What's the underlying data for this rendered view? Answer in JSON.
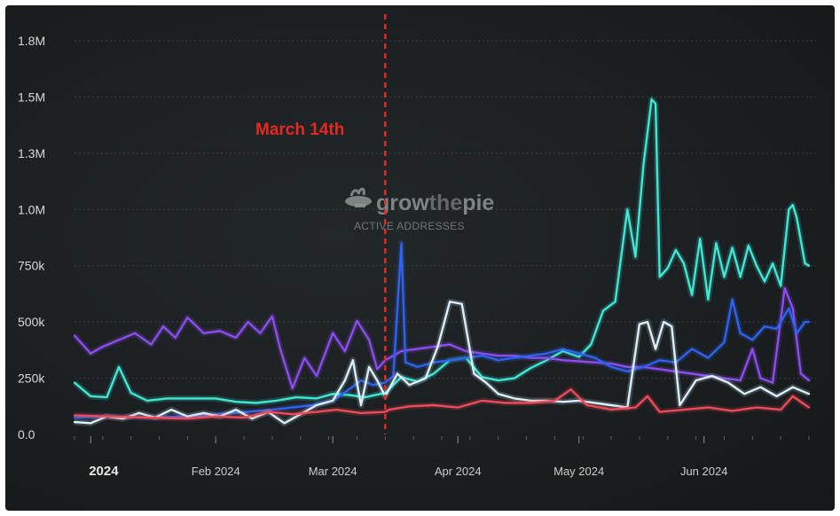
{
  "chart_data": {
    "type": "line",
    "title": "",
    "xlabel": "",
    "ylabel": "",
    "ylim": [
      0,
      1750000
    ],
    "y_ticks": [
      {
        "value": 0,
        "label": "0.0"
      },
      {
        "value": 250000,
        "label": "250k"
      },
      {
        "value": 500000,
        "label": "500k"
      },
      {
        "value": 750000,
        "label": "750k"
      },
      {
        "value": 1000000,
        "label": "1.0M"
      },
      {
        "value": 1250000,
        "label": "1.3M"
      },
      {
        "value": 1500000,
        "label": "1.5M"
      },
      {
        "value": 1750000,
        "label": "1.8M"
      }
    ],
    "x_range": [
      "2023-12-28",
      "2024-06-27"
    ],
    "x_ticks": [
      {
        "date": "2024-01-01",
        "label": "2024",
        "bold": true
      },
      {
        "date": "2024-02-01",
        "label": "Feb 2024",
        "bold": false
      },
      {
        "date": "2024-03-01",
        "label": "Mar 2024",
        "bold": false
      },
      {
        "date": "2024-04-01",
        "label": "Apr 2024",
        "bold": false
      },
      {
        "date": "2024-05-01",
        "label": "May 2024",
        "bold": false
      },
      {
        "date": "2024-06-01",
        "label": "Jun 2024",
        "bold": false
      }
    ],
    "grid": true,
    "annotation": {
      "date": "2024-03-14",
      "label": "March 14th",
      "color": "#e8281f"
    },
    "watermark": {
      "brand_strong": "grow",
      "brand_light": "the",
      "brand_end": "pie",
      "subtitle": "ACTIVE ADDRESSES"
    },
    "series": [
      {
        "name": "teal",
        "color": "#3ee8d6",
        "points": [
          [
            "2023-12-28",
            230000
          ],
          [
            "2024-01-01",
            170000
          ],
          [
            "2024-01-05",
            165000
          ],
          [
            "2024-01-08",
            300000
          ],
          [
            "2024-01-11",
            185000
          ],
          [
            "2024-01-15",
            150000
          ],
          [
            "2024-01-20",
            160000
          ],
          [
            "2024-01-25",
            160000
          ],
          [
            "2024-02-01",
            160000
          ],
          [
            "2024-02-06",
            145000
          ],
          [
            "2024-02-11",
            140000
          ],
          [
            "2024-02-16",
            150000
          ],
          [
            "2024-02-21",
            165000
          ],
          [
            "2024-02-26",
            160000
          ],
          [
            "2024-03-01",
            180000
          ],
          [
            "2024-03-05",
            175000
          ],
          [
            "2024-03-09",
            165000
          ],
          [
            "2024-03-14",
            185000
          ],
          [
            "2024-03-18",
            255000
          ],
          [
            "2024-03-22",
            235000
          ],
          [
            "2024-03-26",
            270000
          ],
          [
            "2024-03-30",
            330000
          ],
          [
            "2024-04-03",
            340000
          ],
          [
            "2024-04-07",
            255000
          ],
          [
            "2024-04-11",
            240000
          ],
          [
            "2024-04-15",
            250000
          ],
          [
            "2024-04-19",
            295000
          ],
          [
            "2024-04-23",
            330000
          ],
          [
            "2024-04-27",
            370000
          ],
          [
            "2024-05-01",
            345000
          ],
          [
            "2024-05-04",
            400000
          ],
          [
            "2024-05-07",
            550000
          ],
          [
            "2024-05-10",
            590000
          ],
          [
            "2024-05-13",
            1000000
          ],
          [
            "2024-05-15",
            790000
          ],
          [
            "2024-05-17",
            1200000
          ],
          [
            "2024-05-19",
            1490000
          ],
          [
            "2024-05-20",
            1470000
          ],
          [
            "2024-05-21",
            700000
          ],
          [
            "2024-05-23",
            740000
          ],
          [
            "2024-05-25",
            820000
          ],
          [
            "2024-05-27",
            760000
          ],
          [
            "2024-05-29",
            620000
          ],
          [
            "2024-05-31",
            870000
          ],
          [
            "2024-06-02",
            600000
          ],
          [
            "2024-06-04",
            850000
          ],
          [
            "2024-06-06",
            700000
          ],
          [
            "2024-06-08",
            830000
          ],
          [
            "2024-06-10",
            700000
          ],
          [
            "2024-06-12",
            840000
          ],
          [
            "2024-06-14",
            750000
          ],
          [
            "2024-06-16",
            680000
          ],
          [
            "2024-06-18",
            760000
          ],
          [
            "2024-06-20",
            660000
          ],
          [
            "2024-06-22",
            1000000
          ],
          [
            "2024-06-23",
            1020000
          ],
          [
            "2024-06-24",
            960000
          ],
          [
            "2024-06-26",
            760000
          ],
          [
            "2024-06-27",
            750000
          ]
        ]
      },
      {
        "name": "purple",
        "color": "#8c4cf0",
        "points": [
          [
            "2023-12-28",
            440000
          ],
          [
            "2024-01-01",
            360000
          ],
          [
            "2024-01-04",
            390000
          ],
          [
            "2024-01-08",
            420000
          ],
          [
            "2024-01-12",
            450000
          ],
          [
            "2024-01-16",
            400000
          ],
          [
            "2024-01-19",
            480000
          ],
          [
            "2024-01-22",
            430000
          ],
          [
            "2024-01-25",
            520000
          ],
          [
            "2024-01-29",
            450000
          ],
          [
            "2024-02-02",
            460000
          ],
          [
            "2024-02-06",
            430000
          ],
          [
            "2024-02-09",
            500000
          ],
          [
            "2024-02-12",
            450000
          ],
          [
            "2024-02-15",
            525000
          ],
          [
            "2024-02-17",
            380000
          ],
          [
            "2024-02-20",
            205000
          ],
          [
            "2024-02-23",
            340000
          ],
          [
            "2024-02-26",
            260000
          ],
          [
            "2024-03-01",
            450000
          ],
          [
            "2024-03-04",
            370000
          ],
          [
            "2024-03-07",
            505000
          ],
          [
            "2024-03-10",
            420000
          ],
          [
            "2024-03-12",
            290000
          ],
          [
            "2024-03-14",
            330000
          ],
          [
            "2024-03-18",
            370000
          ],
          [
            "2024-03-22",
            380000
          ],
          [
            "2024-03-26",
            390000
          ],
          [
            "2024-03-30",
            400000
          ],
          [
            "2024-04-03",
            370000
          ],
          [
            "2024-04-07",
            360000
          ],
          [
            "2024-04-11",
            350000
          ],
          [
            "2024-04-15",
            350000
          ],
          [
            "2024-04-19",
            340000
          ],
          [
            "2024-04-23",
            340000
          ],
          [
            "2024-04-27",
            330000
          ],
          [
            "2024-05-01",
            325000
          ],
          [
            "2024-05-05",
            320000
          ],
          [
            "2024-05-09",
            315000
          ],
          [
            "2024-05-13",
            300000
          ],
          [
            "2024-05-17",
            300000
          ],
          [
            "2024-05-21",
            290000
          ],
          [
            "2024-05-25",
            280000
          ],
          [
            "2024-05-29",
            270000
          ],
          [
            "2024-06-02",
            260000
          ],
          [
            "2024-06-06",
            250000
          ],
          [
            "2024-06-10",
            240000
          ],
          [
            "2024-06-13",
            380000
          ],
          [
            "2024-06-15",
            250000
          ],
          [
            "2024-06-18",
            230000
          ],
          [
            "2024-06-21",
            650000
          ],
          [
            "2024-06-23",
            560000
          ],
          [
            "2024-06-25",
            270000
          ],
          [
            "2024-06-27",
            240000
          ]
        ]
      },
      {
        "name": "blue",
        "color": "#2e62f0",
        "points": [
          [
            "2023-12-28",
            75000
          ],
          [
            "2024-01-05",
            80000
          ],
          [
            "2024-01-15",
            75000
          ],
          [
            "2024-01-25",
            80000
          ],
          [
            "2024-02-05",
            95000
          ],
          [
            "2024-02-15",
            110000
          ],
          [
            "2024-02-25",
            130000
          ],
          [
            "2024-03-01",
            150000
          ],
          [
            "2024-03-05",
            200000
          ],
          [
            "2024-03-08",
            240000
          ],
          [
            "2024-03-11",
            220000
          ],
          [
            "2024-03-14",
            230000
          ],
          [
            "2024-03-16",
            260000
          ],
          [
            "2024-03-18",
            850000
          ],
          [
            "2024-03-19",
            320000
          ],
          [
            "2024-03-22",
            300000
          ],
          [
            "2024-03-26",
            320000
          ],
          [
            "2024-03-30",
            330000
          ],
          [
            "2024-04-03",
            340000
          ],
          [
            "2024-04-07",
            350000
          ],
          [
            "2024-04-11",
            330000
          ],
          [
            "2024-04-15",
            340000
          ],
          [
            "2024-04-19",
            350000
          ],
          [
            "2024-04-23",
            360000
          ],
          [
            "2024-04-27",
            380000
          ],
          [
            "2024-05-01",
            360000
          ],
          [
            "2024-05-05",
            340000
          ],
          [
            "2024-05-09",
            300000
          ],
          [
            "2024-05-13",
            280000
          ],
          [
            "2024-05-17",
            300000
          ],
          [
            "2024-05-21",
            330000
          ],
          [
            "2024-05-25",
            320000
          ],
          [
            "2024-05-29",
            380000
          ],
          [
            "2024-06-02",
            340000
          ],
          [
            "2024-06-06",
            410000
          ],
          [
            "2024-06-08",
            600000
          ],
          [
            "2024-06-10",
            450000
          ],
          [
            "2024-06-13",
            420000
          ],
          [
            "2024-06-16",
            480000
          ],
          [
            "2024-06-19",
            470000
          ],
          [
            "2024-06-22",
            560000
          ],
          [
            "2024-06-24",
            450000
          ],
          [
            "2024-06-26",
            500000
          ],
          [
            "2024-06-27",
            500000
          ]
        ]
      },
      {
        "name": "light-blue",
        "color": "#d8f0fb",
        "points": [
          [
            "2023-12-28",
            55000
          ],
          [
            "2024-01-01",
            50000
          ],
          [
            "2024-01-05",
            80000
          ],
          [
            "2024-01-09",
            70000
          ],
          [
            "2024-01-13",
            95000
          ],
          [
            "2024-01-17",
            75000
          ],
          [
            "2024-01-21",
            110000
          ],
          [
            "2024-01-25",
            80000
          ],
          [
            "2024-01-29",
            95000
          ],
          [
            "2024-02-02",
            80000
          ],
          [
            "2024-02-06",
            110000
          ],
          [
            "2024-02-10",
            70000
          ],
          [
            "2024-02-14",
            100000
          ],
          [
            "2024-02-18",
            50000
          ],
          [
            "2024-02-22",
            90000
          ],
          [
            "2024-02-26",
            130000
          ],
          [
            "2024-03-01",
            150000
          ],
          [
            "2024-03-04",
            240000
          ],
          [
            "2024-03-06",
            330000
          ],
          [
            "2024-03-08",
            130000
          ],
          [
            "2024-03-10",
            300000
          ],
          [
            "2024-03-12",
            240000
          ],
          [
            "2024-03-14",
            170000
          ],
          [
            "2024-03-17",
            270000
          ],
          [
            "2024-03-20",
            220000
          ],
          [
            "2024-03-24",
            250000
          ],
          [
            "2024-03-27",
            390000
          ],
          [
            "2024-03-30",
            590000
          ],
          [
            "2024-04-02",
            580000
          ],
          [
            "2024-04-05",
            270000
          ],
          [
            "2024-04-08",
            230000
          ],
          [
            "2024-04-11",
            180000
          ],
          [
            "2024-04-15",
            160000
          ],
          [
            "2024-04-19",
            150000
          ],
          [
            "2024-04-23",
            150000
          ],
          [
            "2024-04-27",
            145000
          ],
          [
            "2024-05-01",
            150000
          ],
          [
            "2024-05-05",
            140000
          ],
          [
            "2024-05-09",
            130000
          ],
          [
            "2024-05-13",
            120000
          ],
          [
            "2024-05-16",
            490000
          ],
          [
            "2024-05-18",
            500000
          ],
          [
            "2024-05-20",
            380000
          ],
          [
            "2024-05-22",
            500000
          ],
          [
            "2024-05-24",
            480000
          ],
          [
            "2024-05-26",
            130000
          ],
          [
            "2024-05-30",
            240000
          ],
          [
            "2024-06-03",
            260000
          ],
          [
            "2024-06-07",
            230000
          ],
          [
            "2024-06-11",
            180000
          ],
          [
            "2024-06-15",
            210000
          ],
          [
            "2024-06-19",
            170000
          ],
          [
            "2024-06-23",
            210000
          ],
          [
            "2024-06-27",
            180000
          ]
        ]
      },
      {
        "name": "red",
        "color": "#f04a58",
        "points": [
          [
            "2023-12-28",
            85000
          ],
          [
            "2024-01-05",
            80000
          ],
          [
            "2024-01-15",
            75000
          ],
          [
            "2024-01-25",
            70000
          ],
          [
            "2024-02-01",
            80000
          ],
          [
            "2024-02-08",
            75000
          ],
          [
            "2024-02-14",
            100000
          ],
          [
            "2024-02-20",
            90000
          ],
          [
            "2024-02-26",
            100000
          ],
          [
            "2024-03-02",
            110000
          ],
          [
            "2024-03-08",
            95000
          ],
          [
            "2024-03-14",
            100000
          ],
          [
            "2024-03-15",
            110000
          ],
          [
            "2024-03-20",
            125000
          ],
          [
            "2024-03-26",
            130000
          ],
          [
            "2024-04-01",
            120000
          ],
          [
            "2024-04-07",
            150000
          ],
          [
            "2024-04-13",
            140000
          ],
          [
            "2024-04-19",
            140000
          ],
          [
            "2024-04-25",
            150000
          ],
          [
            "2024-04-29",
            200000
          ],
          [
            "2024-05-03",
            130000
          ],
          [
            "2024-05-09",
            110000
          ],
          [
            "2024-05-15",
            120000
          ],
          [
            "2024-05-18",
            170000
          ],
          [
            "2024-05-21",
            100000
          ],
          [
            "2024-05-27",
            110000
          ],
          [
            "2024-06-02",
            120000
          ],
          [
            "2024-06-08",
            105000
          ],
          [
            "2024-06-14",
            120000
          ],
          [
            "2024-06-20",
            110000
          ],
          [
            "2024-06-23",
            170000
          ],
          [
            "2024-06-27",
            120000
          ]
        ]
      }
    ]
  }
}
